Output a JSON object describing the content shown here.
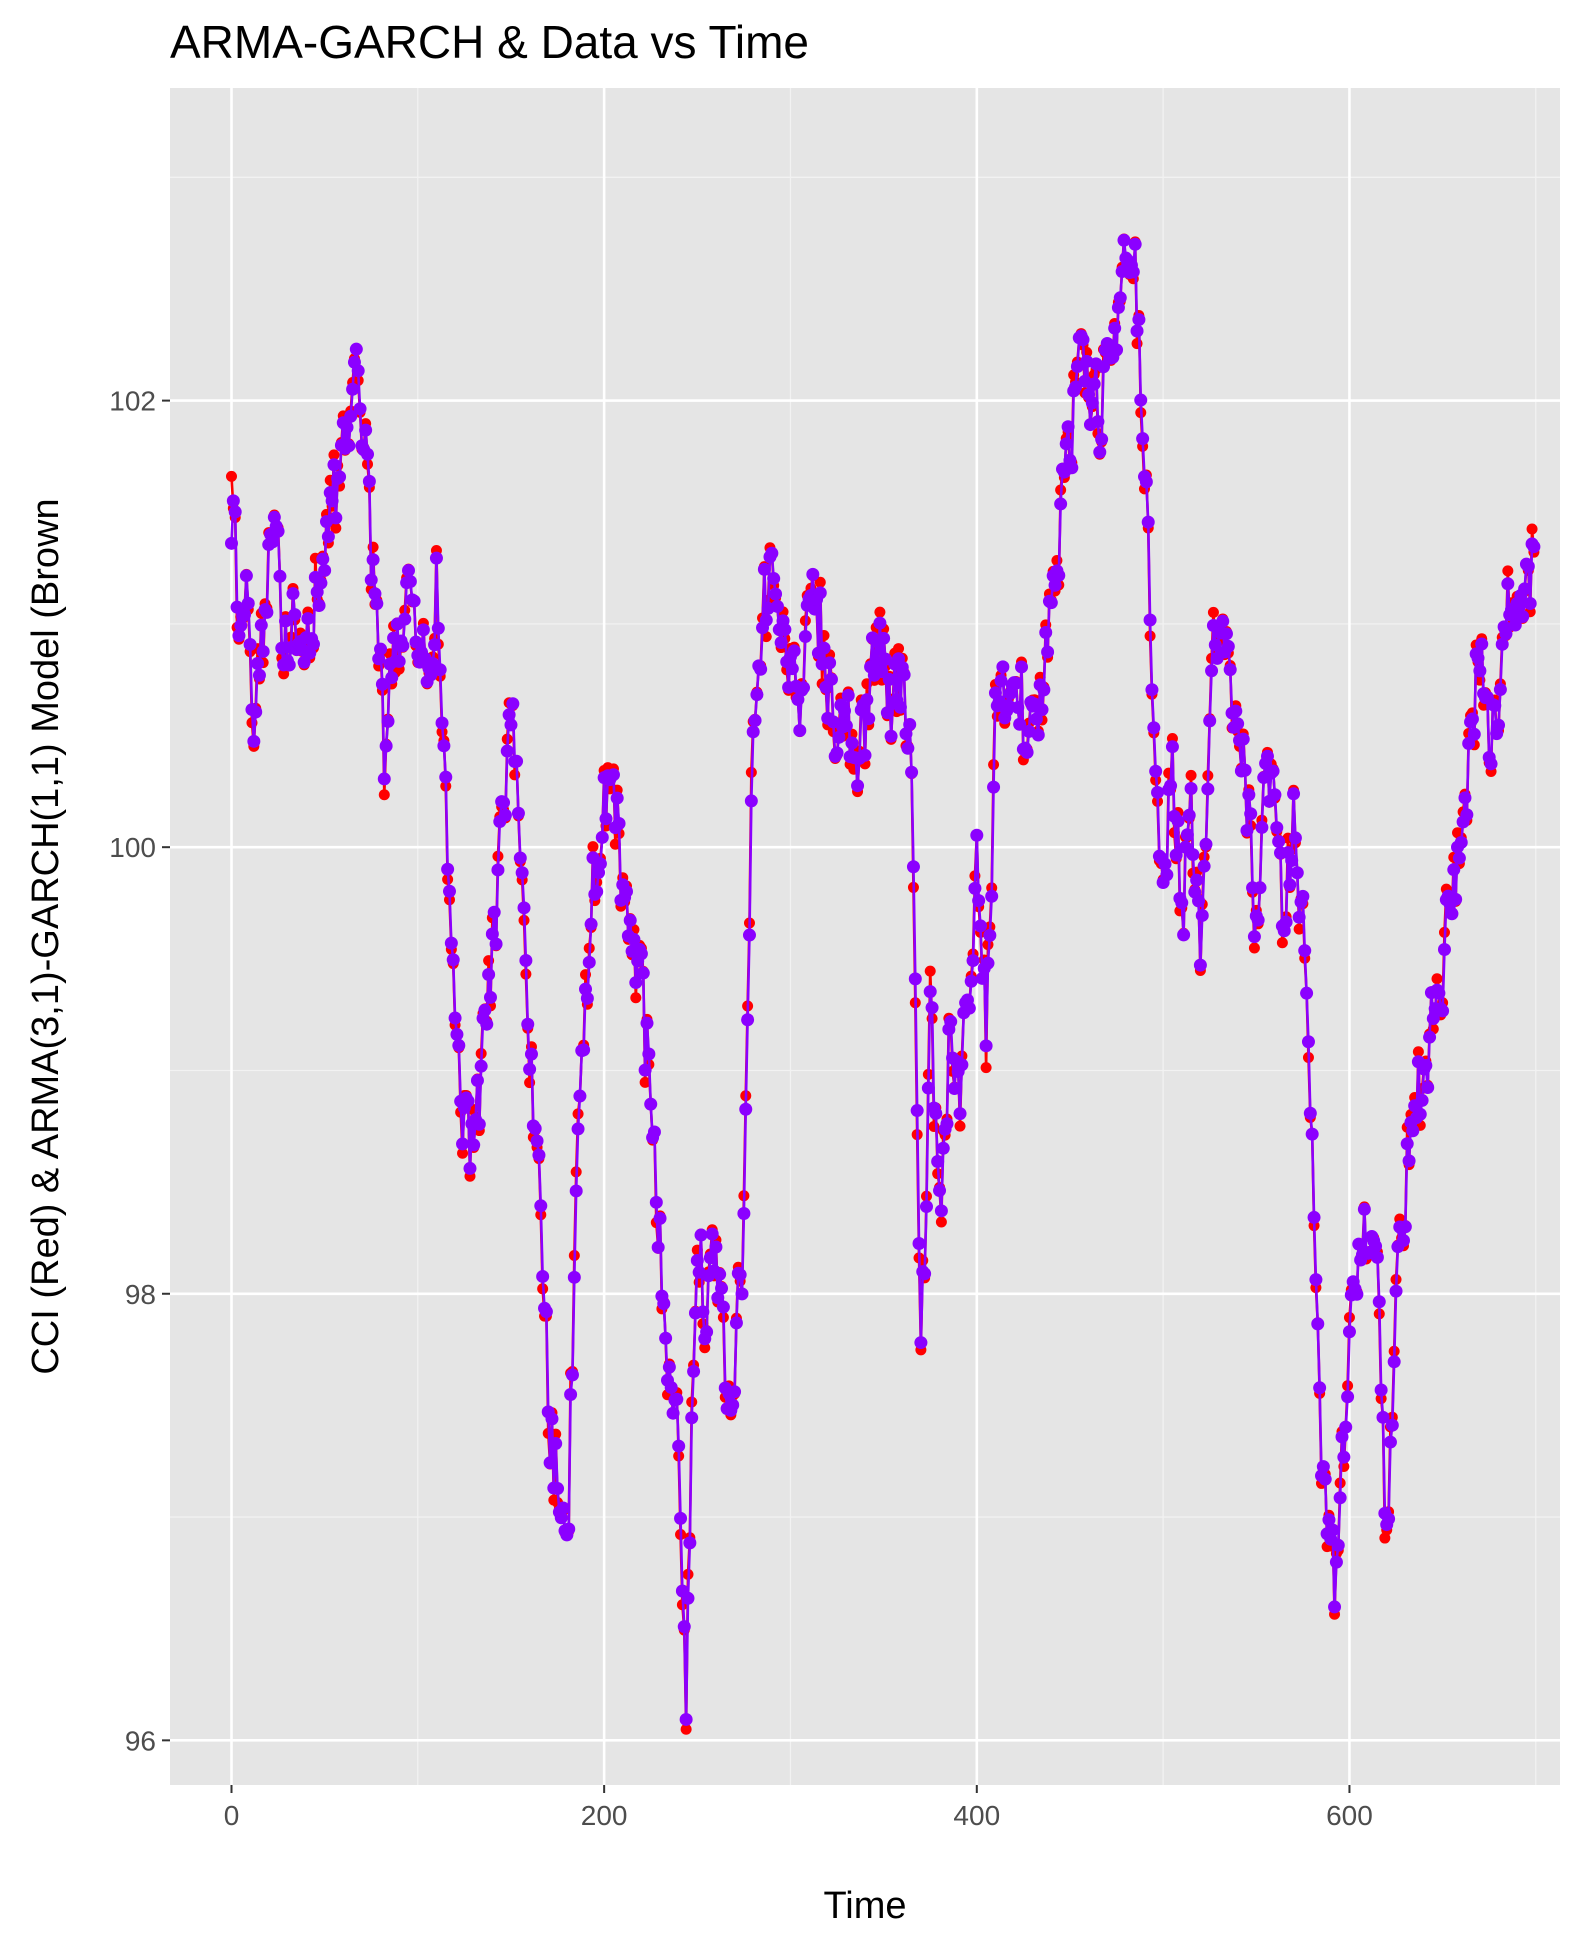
{
  "colors": {
    "panel_background": "#e5e5e5",
    "grid_major": "#ffffff",
    "grid_minor": "#f2f2f2",
    "series_data": "#ff0000",
    "series_model": "#8b00ff"
  },
  "chart_data": {
    "type": "line",
    "title": "ARMA-GARCH & Data vs Time",
    "xlabel": "Time",
    "ylabel": "CCI (Red) & ARMA(3,1)-GARCH(1,1) Model (Brown",
    "xlim": [
      -33,
      713
    ],
    "ylim": [
      95.8,
      103.4
    ],
    "x_ticks": [
      0,
      200,
      400,
      600
    ],
    "x_tick_labels": [
      "0",
      "200",
      "400",
      "600"
    ],
    "y_ticks": [
      96,
      98,
      100,
      102
    ],
    "y_tick_labels": [
      "96",
      "98",
      "100",
      "102"
    ],
    "grid": true,
    "legend": "none",
    "markers": true,
    "n_points": 700,
    "anchor_points": {
      "description": "approximate local values read off the plot; series are densely sampled at unit time steps",
      "x": [
        0,
        5,
        8,
        12,
        15,
        20,
        25,
        28,
        32,
        38,
        45,
        50,
        55,
        60,
        66,
        70,
        74,
        78,
        82,
        85,
        90,
        95,
        100,
        105,
        110,
        114,
        118,
        122,
        126,
        130,
        135,
        140,
        145,
        150,
        155,
        160,
        165,
        170,
        175,
        180,
        185,
        190,
        195,
        200,
        205,
        210,
        215,
        220,
        225,
        230,
        235,
        240,
        244,
        247,
        250,
        255,
        260,
        265,
        270,
        275,
        280,
        285,
        290,
        295,
        300,
        305,
        310,
        315,
        320,
        325,
        330,
        335,
        340,
        345,
        350,
        355,
        360,
        365,
        370,
        375,
        380,
        385,
        390,
        395,
        400,
        405,
        410,
        415,
        420,
        425,
        430,
        435,
        440,
        445,
        450,
        455,
        460,
        465,
        470,
        475,
        480,
        485,
        490,
        495,
        500,
        505,
        510,
        515,
        520,
        525,
        530,
        535,
        540,
        545,
        550,
        555,
        560,
        565,
        570,
        575,
        580,
        585,
        588,
        592,
        596,
        600,
        605,
        610,
        615,
        620,
        625,
        630,
        635,
        640,
        645,
        650,
        655,
        660,
        665,
        670,
        675,
        680,
        685,
        690,
        695,
        700
      ],
      "cci_red": [
        101.55,
        100.95,
        101.05,
        100.55,
        100.85,
        101.2,
        101.35,
        100.9,
        101.0,
        100.95,
        101.1,
        101.4,
        101.55,
        101.85,
        102.1,
        101.9,
        101.5,
        100.95,
        100.4,
        100.7,
        100.95,
        101.1,
        100.9,
        100.75,
        101.15,
        100.4,
        99.5,
        98.95,
        98.7,
        98.6,
        99.1,
        99.5,
        100.15,
        100.55,
        99.95,
        99.0,
        98.6,
        97.5,
        97.1,
        96.75,
        98.5,
        99.3,
        99.95,
        100.2,
        100.25,
        99.75,
        99.6,
        99.35,
        98.8,
        98.2,
        97.6,
        97.35,
        96.15,
        97.6,
        98.3,
        97.8,
        98.3,
        97.55,
        97.7,
        98.3,
        100.6,
        101.0,
        101.35,
        100.95,
        100.85,
        100.6,
        101.0,
        101.05,
        100.75,
        100.5,
        100.7,
        100.3,
        100.55,
        100.9,
        100.85,
        100.65,
        100.7,
        100.45,
        97.6,
        99.3,
        98.3,
        99.05,
        98.9,
        99.2,
        99.95,
        99.15,
        100.6,
        100.7,
        100.75,
        100.6,
        100.55,
        100.7,
        101.05,
        101.45,
        101.85,
        102.2,
        102.1,
        101.9,
        102.15,
        102.25,
        102.6,
        102.55,
        101.75,
        100.55,
        99.85,
        100.4,
        99.65,
        100.2,
        99.45,
        100.7,
        101.1,
        100.8,
        100.55,
        100.25,
        99.6,
        100.25,
        100.3,
        99.6,
        100.2,
        99.55,
        98.7,
        97.3,
        96.85,
        96.75,
        97.3,
        97.8,
        98.1,
        98.3,
        98.0,
        96.75,
        97.95,
        98.5,
        98.8,
        99.0,
        99.2,
        99.5,
        99.8,
        100.05,
        100.5,
        100.85,
        100.5,
        100.65,
        101.05,
        101.1,
        101.2,
        101.25
      ]
    }
  }
}
